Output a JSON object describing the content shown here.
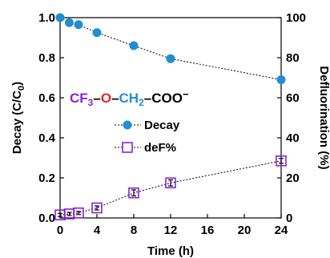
{
  "chart_data": {
    "type": "line",
    "x": [
      0,
      1,
      2,
      4,
      8,
      12,
      24
    ],
    "x_ticks": [
      "0",
      "4",
      "8",
      "12",
      "16",
      "20",
      "24"
    ],
    "xlim": [
      0,
      24
    ],
    "xlabel": "Time (h)",
    "left_axis": {
      "label_main": "Decay (C/C",
      "label_sub": "0",
      "label_end": ")",
      "ylim": [
        0,
        1.0
      ],
      "ticks": [
        "0.0",
        "0.2",
        "0.4",
        "0.6",
        "0.8",
        "1.0"
      ]
    },
    "right_axis": {
      "label": "Defluorination (%)",
      "ylim": [
        0,
        100
      ],
      "ticks": [
        "0",
        "20",
        "40",
        "60",
        "80",
        "100"
      ]
    },
    "series": [
      {
        "name": "Decay",
        "axis": "left",
        "marker": "circle",
        "color": "#1F8FD1",
        "x": [
          0,
          1,
          2,
          4,
          8,
          12,
          24
        ],
        "values": [
          1.0,
          0.975,
          0.965,
          0.925,
          0.86,
          0.795,
          0.69
        ]
      },
      {
        "name": "deF%",
        "axis": "right",
        "marker": "square",
        "color": "#8B22D6",
        "x": [
          0,
          1,
          2,
          4,
          8,
          12,
          24
        ],
        "values": [
          1.5,
          2.0,
          2.5,
          5.0,
          12.5,
          17.5,
          28.5
        ],
        "errors": [
          0.8,
          0.8,
          0.8,
          1.0,
          1.5,
          1.5,
          1.2
        ]
      }
    ],
    "formula": {
      "cf": "CF",
      "sub3": "3",
      "dash1": "–",
      "o": "O",
      "dash2": "–",
      "ch": "CH",
      "sub2": "2",
      "dash3": "–",
      "coo": "COO",
      "charge": "−"
    },
    "colors": {
      "formula_purple": "#8B22D6",
      "formula_red": "#E8252B",
      "formula_blue": "#1F8FD1"
    },
    "legend_position": "middle-left"
  }
}
